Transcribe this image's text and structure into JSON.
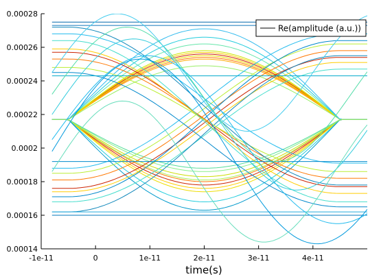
{
  "chart_data": {
    "type": "line",
    "title": "",
    "xlabel": "time(s)",
    "ylabel": "",
    "xlim": [
      -1e-11,
      5e-11
    ],
    "ylim": [
      0.00014,
      0.00028
    ],
    "x_ticks": [
      -1e-11,
      0,
      1e-11,
      2e-11,
      3e-11,
      4e-11
    ],
    "x_tick_labels": [
      "-1e-11",
      "0",
      "1e-11",
      "2e-11",
      "3e-11",
      "4e-11"
    ],
    "y_ticks": [
      0.00014,
      0.00016,
      0.00018,
      0.0002,
      0.00022,
      0.00024,
      0.00026,
      0.00028
    ],
    "y_tick_labels": [
      "0.00014",
      "0.00016",
      "0.00018",
      "0.0002",
      "0.00022",
      "0.00024",
      "0.00026",
      "0.00028"
    ],
    "grid": false,
    "legend": {
      "position": "top-right",
      "entries": [
        "Re(amplitude (a.u.))"
      ]
    },
    "eye_diagram": {
      "upper_level": 0.000256,
      "lower_level": 0.000178,
      "crossing_times": [
        -5e-12,
        4.5e-11
      ],
      "eye_center_time": 2e-11,
      "trace_x_range": [
        -8e-12,
        5e-11
      ],
      "traces": [
        {
          "kind": "high",
          "level": 0.000256,
          "color": "#cc2200"
        },
        {
          "kind": "high",
          "level": 0.000254,
          "color": "#ff7700"
        },
        {
          "kind": "high",
          "level": 0.000257,
          "color": "#ffcc00"
        },
        {
          "kind": "high",
          "level": 0.000258,
          "color": "#cce600"
        },
        {
          "kind": "high",
          "level": 0.000253,
          "color": "#ffaa00"
        },
        {
          "kind": "high",
          "level": 0.000255,
          "color": "#eedd00"
        },
        {
          "kind": "high",
          "level": 0.000262,
          "color": "#66e6aa"
        },
        {
          "kind": "high",
          "level": 0.000266,
          "color": "#22ccdd"
        },
        {
          "kind": "high",
          "level": 0.000249,
          "color": "#99ee66"
        },
        {
          "kind": "high",
          "level": 0.000271,
          "color": "#33bbee"
        },
        {
          "kind": "low",
          "level": 0.000178,
          "color": "#cc2200"
        },
        {
          "kind": "low",
          "level": 0.00018,
          "color": "#ff7700"
        },
        {
          "kind": "low",
          "level": 0.000176,
          "color": "#ffcc00"
        },
        {
          "kind": "low",
          "level": 0.000183,
          "color": "#ccdd00"
        },
        {
          "kind": "low",
          "level": 0.000174,
          "color": "#eedd00"
        },
        {
          "kind": "low",
          "level": 0.000186,
          "color": "#88ee88"
        },
        {
          "kind": "low",
          "level": 0.000168,
          "color": "#22ccdd"
        },
        {
          "kind": "low",
          "level": 0.000188,
          "color": "#55dd99"
        },
        {
          "kind": "low",
          "level": 0.000163,
          "color": "#0099cc"
        },
        {
          "kind": "low",
          "level": 0.000181,
          "color": "#aaee55"
        },
        {
          "kind": "rise",
          "from": 0.000176,
          "to": 0.000254,
          "color": "#cc2200"
        },
        {
          "kind": "rise",
          "from": 0.000181,
          "to": 0.000258,
          "color": "#ff7700"
        },
        {
          "kind": "rise",
          "from": 0.000174,
          "to": 0.000251,
          "color": "#ffcc00"
        },
        {
          "kind": "rise",
          "from": 0.000185,
          "to": 0.000262,
          "color": "#bbee33"
        },
        {
          "kind": "rise",
          "from": 0.000168,
          "to": 0.000247,
          "color": "#44ddcc"
        },
        {
          "kind": "rise",
          "from": 0.000188,
          "to": 0.000268,
          "color": "#22bbee"
        },
        {
          "kind": "rise",
          "from": 0.000171,
          "to": 0.000264,
          "color": "#0088cc"
        },
        {
          "kind": "rise",
          "from": 0.000162,
          "to": 0.000255,
          "color": "#1188bb"
        },
        {
          "kind": "fall",
          "from": 0.000257,
          "to": 0.000177,
          "color": "#cc2200"
        },
        {
          "kind": "fall",
          "from": 0.000253,
          "to": 0.000182,
          "color": "#ff7700"
        },
        {
          "kind": "fall",
          "from": 0.000259,
          "to": 0.000173,
          "color": "#ffcc00"
        },
        {
          "kind": "fall",
          "from": 0.000248,
          "to": 0.000186,
          "color": "#bbee33"
        },
        {
          "kind": "fall",
          "from": 0.000264,
          "to": 0.000168,
          "color": "#44ddcc"
        },
        {
          "kind": "fall",
          "from": 0.000268,
          "to": 0.000191,
          "color": "#22bbee"
        },
        {
          "kind": "fall",
          "from": 0.000245,
          "to": 0.000165,
          "color": "#0088cc"
        },
        {
          "kind": "fall",
          "from": 0.000272,
          "to": 0.000178,
          "color": "#1188bb"
        },
        {
          "kind": "flat",
          "level": 0.000275,
          "color": "#0066aa"
        },
        {
          "kind": "flat",
          "level": 0.000273,
          "color": "#1177bb"
        },
        {
          "kind": "flat",
          "level": 0.00016,
          "color": "#0077bb"
        },
        {
          "kind": "flat",
          "level": 0.000192,
          "color": "#0088cc"
        },
        {
          "kind": "flat",
          "level": 0.000162,
          "color": "#22aadd"
        },
        {
          "kind": "flat",
          "level": 0.000243,
          "color": "#00aacc"
        },
        {
          "kind": "wave",
          "start": 0.00022,
          "amplitude": 4.5e-05,
          "period": 6e-11,
          "color": "#33ccdd"
        },
        {
          "kind": "wave",
          "start": 0.000232,
          "amplitude": 4e-05,
          "period": 5.5e-11,
          "color": "#55ddaa"
        },
        {
          "kind": "wave",
          "start": 0.000205,
          "amplitude": 5e-05,
          "period": 7e-11,
          "color": "#22bbee"
        },
        {
          "kind": "wave",
          "start": 0.000198,
          "amplitude": 5.5e-05,
          "period": 6.5e-11,
          "color": "#0099dd"
        },
        {
          "kind": "wave",
          "start": 0.000245,
          "amplitude": 3.5e-05,
          "period": 4.8e-11,
          "color": "#44ccee"
        },
        {
          "kind": "wave",
          "start": 0.000186,
          "amplitude": 4.2e-05,
          "period": 5.2e-11,
          "color": "#66ddbb"
        }
      ]
    }
  }
}
